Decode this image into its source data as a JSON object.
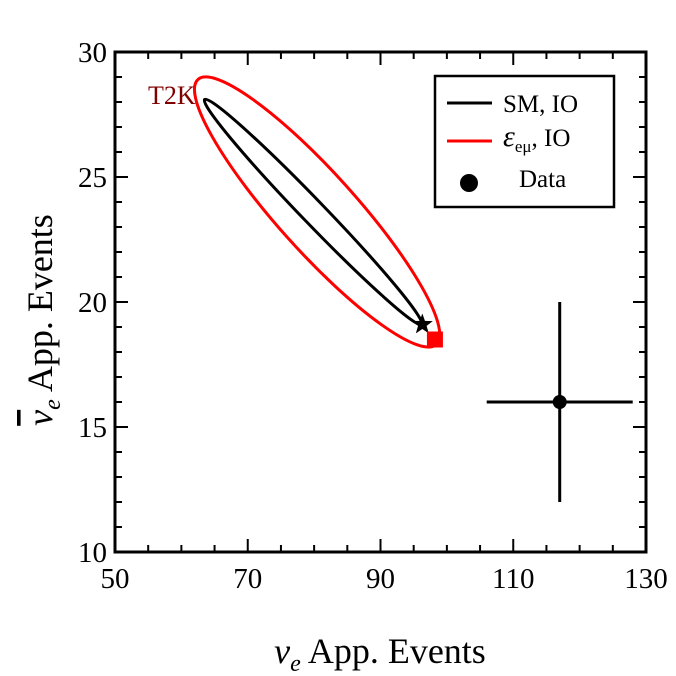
{
  "chart_data": {
    "type": "scatter",
    "title": "",
    "xlabel": {
      "symbol": "ν",
      "sub": "e",
      "text": " App. Events"
    },
    "ylabel": {
      "symbol": "ν",
      "sub": "e",
      "text": " App. Events",
      "overline": true
    },
    "xlim": [
      50,
      130
    ],
    "ylim": [
      10,
      30
    ],
    "x_ticks": [
      50,
      70,
      90,
      110,
      130
    ],
    "y_ticks": [
      10,
      15,
      20,
      25,
      30
    ],
    "x_minor_step": 5,
    "y_minor_step": 1,
    "grid": false,
    "legend_position": "top-right",
    "experiment_label": "T2K",
    "experiment_color": "#800000",
    "series": [
      {
        "name": "SM, IO",
        "color": "#000000",
        "kind": "ellipse",
        "center": [
          79.8,
          23.6
        ],
        "endpoint_a": [
          63.5,
          28.1
        ],
        "endpoint_b": [
          96.2,
          19.1
        ],
        "semi_minor_data": [
          0.22,
          0.8
        ]
      },
      {
        "name": "ε_eμ, IO",
        "legend_symbol": "ε",
        "legend_sub": "eμ",
        "legend_suffix": ", IO",
        "color": "#ff0000",
        "kind": "ellipse",
        "center": [
          80.4,
          23.6
        ],
        "endpoint_a": [
          62.5,
          28.9
        ],
        "endpoint_b": [
          98.4,
          18.3
        ],
        "semi_minor_data": [
          0.9,
          3.0
        ]
      }
    ],
    "markers": [
      {
        "name": "sm-best-fit",
        "shape": "star",
        "x": 96.3,
        "y": 19.1,
        "color": "#000000"
      },
      {
        "name": "nsi-best-fit",
        "shape": "square",
        "x": 98.2,
        "y": 18.5,
        "color": "#ff0000"
      }
    ],
    "data_point": {
      "name": "Data",
      "x": 117,
      "y": 16,
      "x_err": [
        11,
        11
      ],
      "y_err": [
        4,
        4
      ],
      "color": "#000000"
    }
  }
}
